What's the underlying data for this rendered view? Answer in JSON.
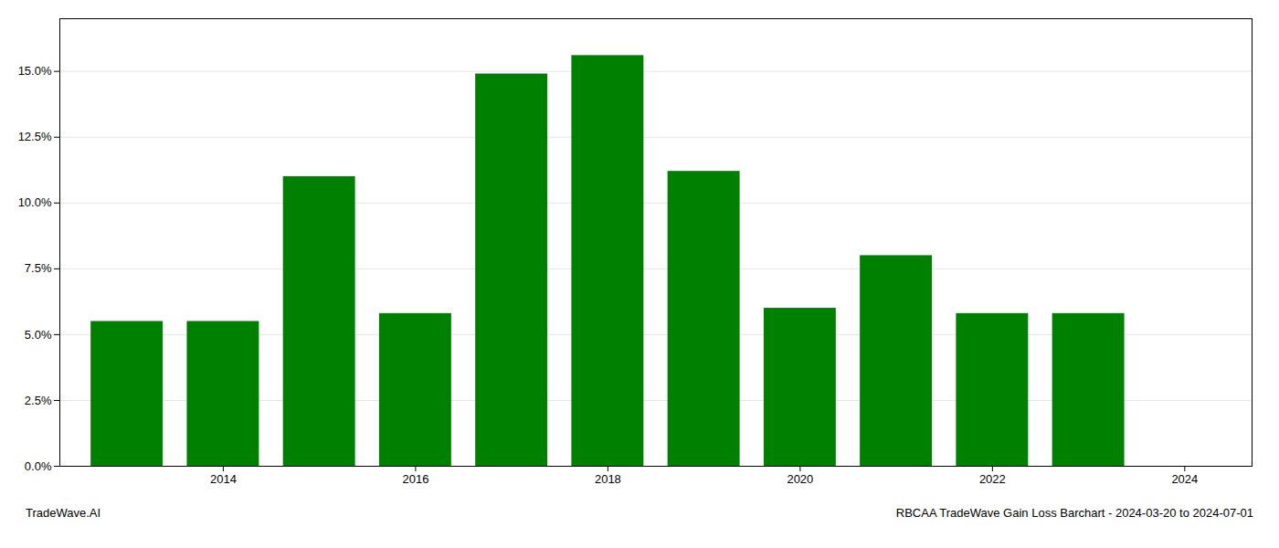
{
  "chart_data": {
    "type": "bar",
    "title": "RBCAA TradeWave Gain Loss Barchart - 2024-03-20 to 2024-07-01",
    "annotations": [
      "TradeWave.AI"
    ],
    "x": [
      2013,
      2014,
      2015,
      2016,
      2017,
      2018,
      2019,
      2020,
      2021,
      2022,
      2023
    ],
    "values": [
      0.055,
      0.055,
      0.11,
      0.058,
      0.149,
      0.156,
      0.112,
      0.06,
      0.08,
      0.058,
      0.058
    ],
    "color": "#008000",
    "xlim": [
      2012.3,
      2024.7
    ],
    "xticks": [
      2014,
      2016,
      2018,
      2020,
      2022,
      2024
    ],
    "ylim": [
      0,
      0.17
    ],
    "yticks": [
      {
        "value": 0.0,
        "label": "0.0%"
      },
      {
        "value": 0.025,
        "label": "2.5%"
      },
      {
        "value": 0.05,
        "label": "5.0%"
      },
      {
        "value": 0.075,
        "label": "7.5%"
      },
      {
        "value": 0.1,
        "label": "10.0%"
      },
      {
        "value": 0.125,
        "label": "12.5%"
      },
      {
        "value": 0.15,
        "label": "15.0%"
      }
    ],
    "grid": true
  }
}
